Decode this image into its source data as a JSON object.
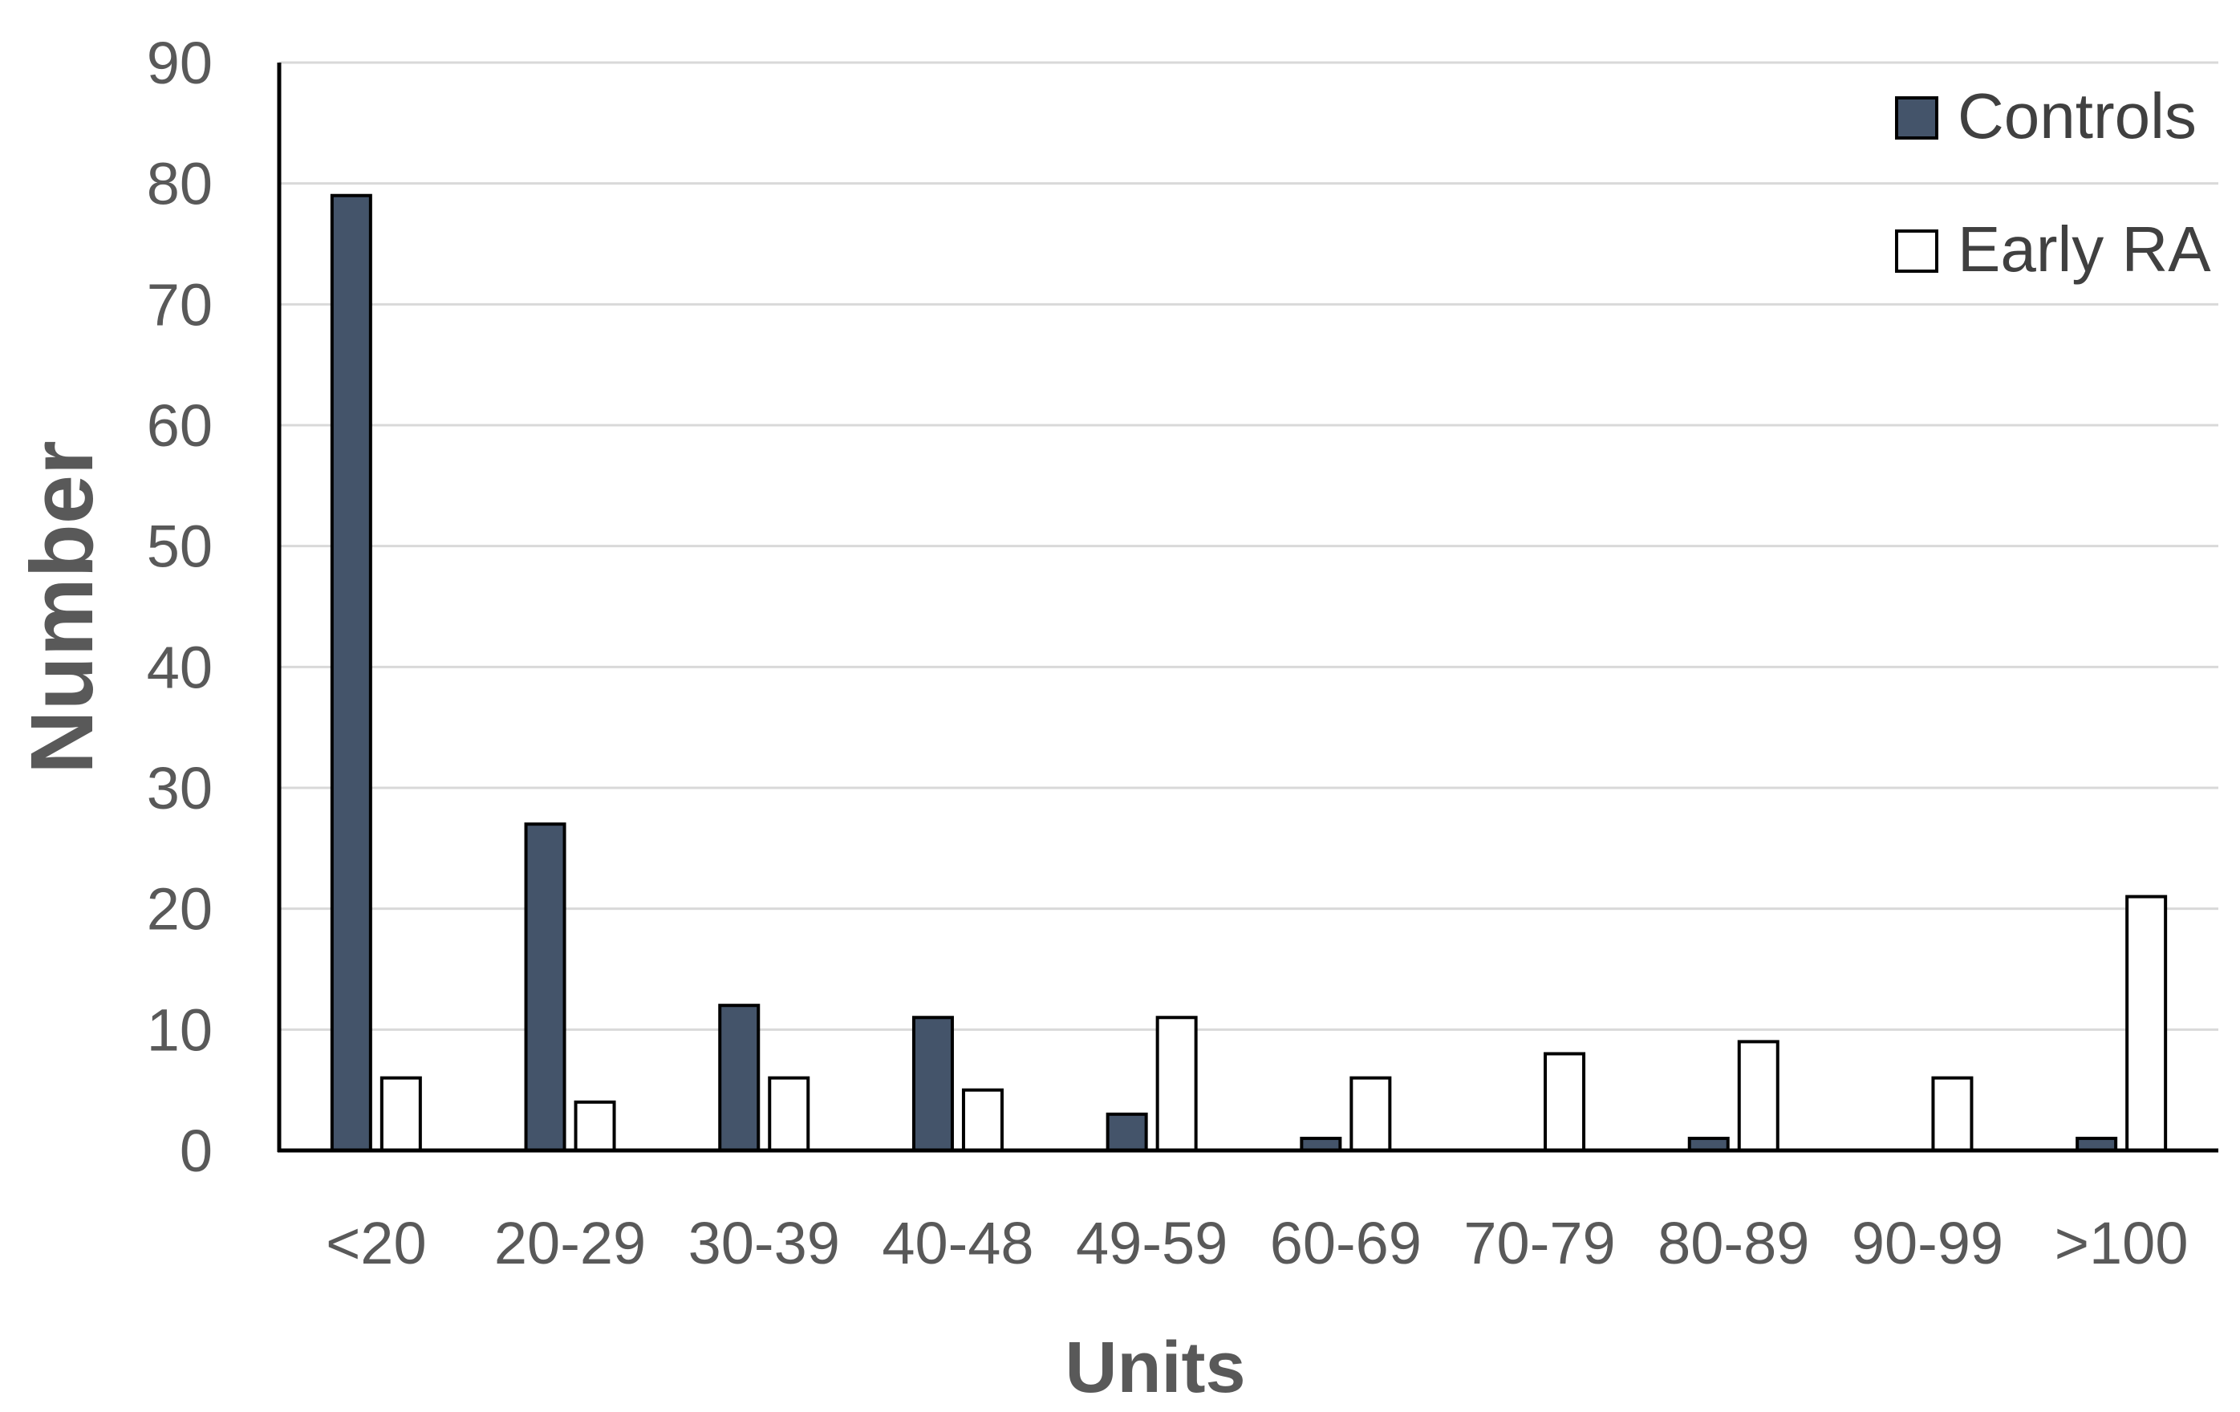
{
  "chart_data": {
    "type": "bar",
    "title": "",
    "xlabel": "Units",
    "ylabel": "Number",
    "ylim": [
      0,
      90
    ],
    "yticks": [
      0,
      10,
      20,
      30,
      40,
      50,
      60,
      70,
      80,
      90
    ],
    "grid": true,
    "legend_position": "top-right",
    "categories": [
      "<20",
      "20-29",
      "30-39",
      "40-48",
      "49-59",
      "60-69",
      "70-79",
      "80-89",
      "90-99",
      ">100"
    ],
    "series": [
      {
        "name": "Controls",
        "color": "#44546a",
        "values": [
          79,
          27,
          12,
          11,
          3,
          1,
          0,
          1,
          0,
          1
        ]
      },
      {
        "name": "Early RA",
        "color": "#ffffff",
        "values": [
          6,
          4,
          6,
          5,
          11,
          6,
          8,
          9,
          6,
          21
        ]
      }
    ]
  }
}
